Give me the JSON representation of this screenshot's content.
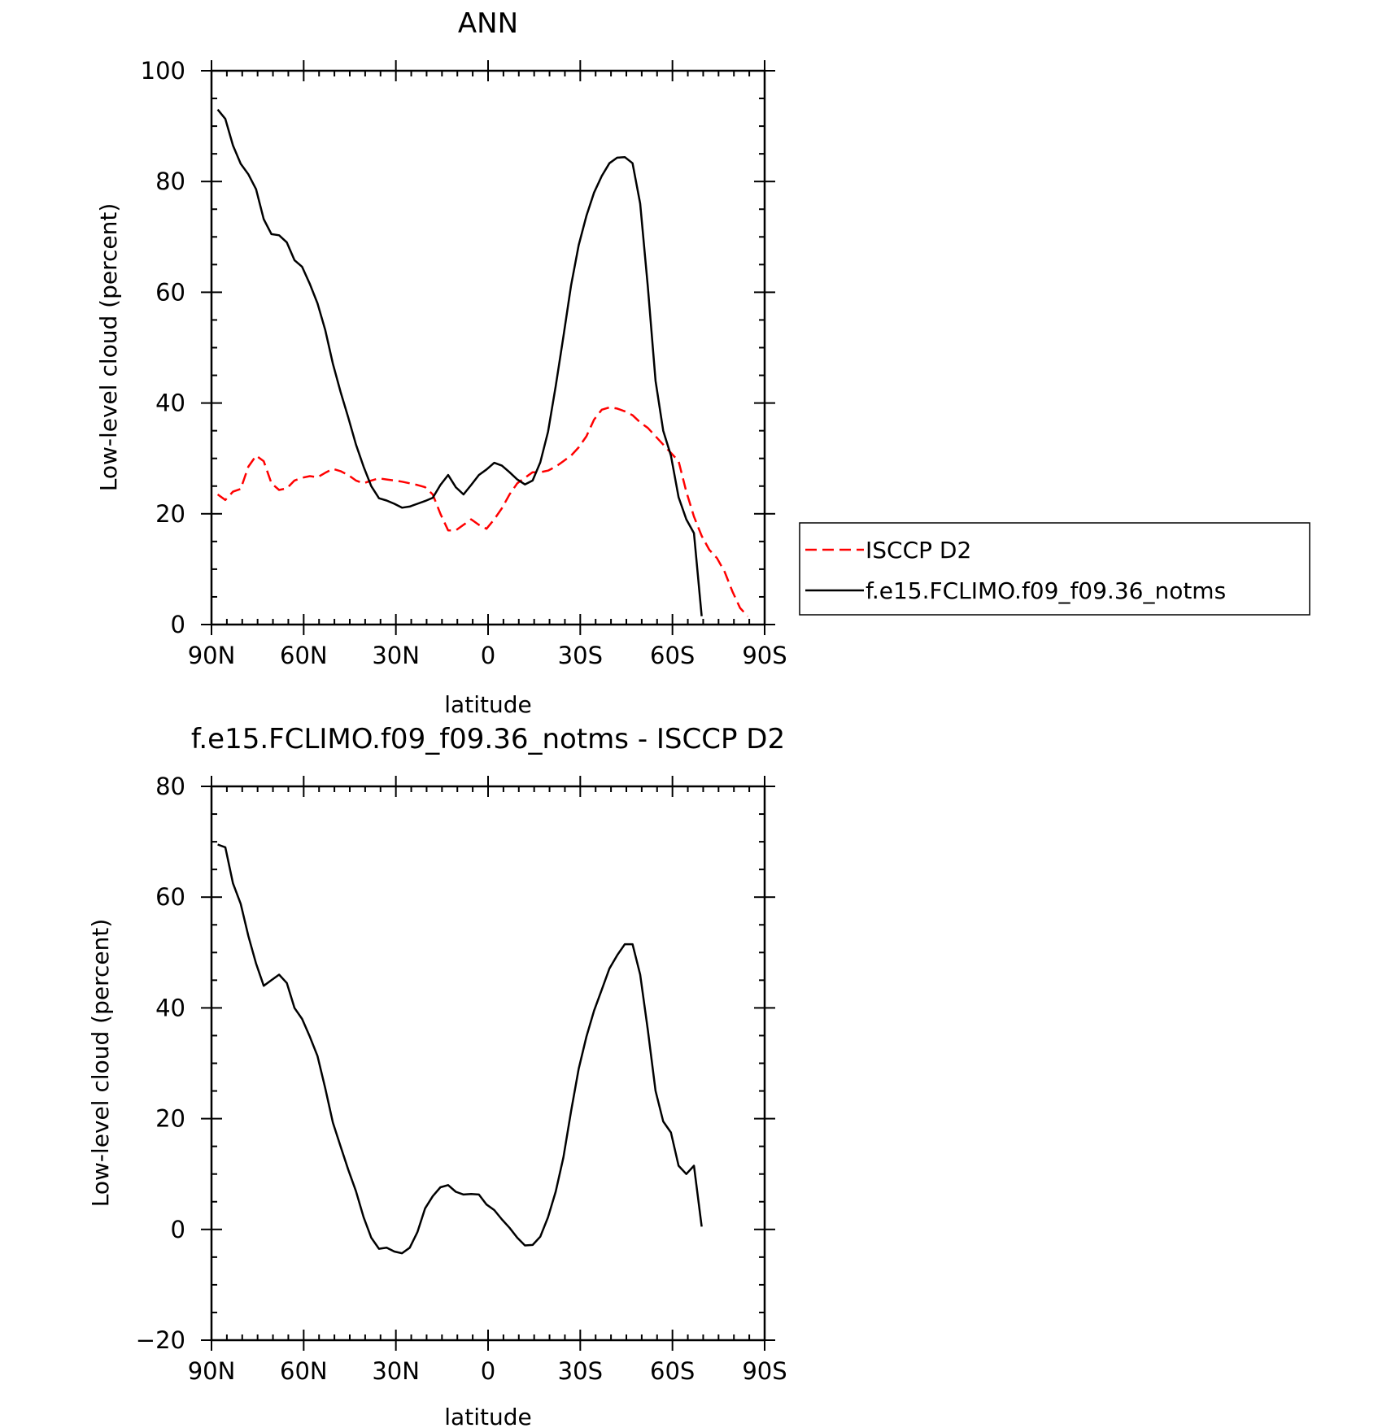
{
  "chart_data": [
    {
      "type": "line",
      "title": "ANN",
      "xlabel": "latitude",
      "ylabel": "Low-level cloud (percent)",
      "xlim": [
        90,
        -90
      ],
      "ylim": [
        0,
        100
      ],
      "x_ticks": [
        {
          "value": 90,
          "label": "90N"
        },
        {
          "value": 60,
          "label": "60N"
        },
        {
          "value": 30,
          "label": "30N"
        },
        {
          "value": 0,
          "label": "0"
        },
        {
          "value": -30,
          "label": "30S"
        },
        {
          "value": -60,
          "label": "60S"
        },
        {
          "value": -90,
          "label": "90S"
        }
      ],
      "y_ticks": [
        0,
        20,
        40,
        60,
        80,
        100
      ],
      "legend": {
        "placement": "right"
      },
      "series": [
        {
          "name": "ISCCP D2",
          "color": "#ff0000",
          "style": "dashed",
          "points": [
            [
              88,
              23.5
            ],
            [
              85.5,
              22.5
            ],
            [
              83,
              24
            ],
            [
              80.5,
              24.5
            ],
            [
              78,
              28.5
            ],
            [
              75.5,
              30.5
            ],
            [
              73,
              29.5
            ],
            [
              70.5,
              25.5
            ],
            [
              68,
              24.3
            ],
            [
              65.5,
              24.6
            ],
            [
              63,
              26
            ],
            [
              60.5,
              26.5
            ],
            [
              58,
              26.8
            ],
            [
              55.5,
              26.6
            ],
            [
              53,
              27.4
            ],
            [
              50.5,
              28.1
            ],
            [
              48,
              27.7
            ],
            [
              45.5,
              27
            ],
            [
              43,
              26
            ],
            [
              40.5,
              25.5
            ],
            [
              38,
              26
            ],
            [
              35.5,
              26.4
            ],
            [
              33,
              26.2
            ],
            [
              30.5,
              26
            ],
            [
              28,
              25.8
            ],
            [
              25.5,
              25.5
            ],
            [
              23,
              25.2
            ],
            [
              20.5,
              24.8
            ],
            [
              18,
              23.5
            ],
            [
              15.5,
              20
            ],
            [
              13,
              17
            ],
            [
              10.5,
              17
            ],
            [
              8,
              18
            ],
            [
              5.5,
              19
            ],
            [
              3,
              18
            ],
            [
              0.5,
              17.3
            ],
            [
              -2,
              19
            ],
            [
              -4.5,
              21
            ],
            [
              -7,
              23.5
            ],
            [
              -9.5,
              25.5
            ],
            [
              -12,
              26.5
            ],
            [
              -14.5,
              27.5
            ],
            [
              -17,
              27.5
            ],
            [
              -19.5,
              27.8
            ],
            [
              -22,
              28.5
            ],
            [
              -24.5,
              29.5
            ],
            [
              -27,
              30.5
            ],
            [
              -29.5,
              32
            ],
            [
              -32,
              34
            ],
            [
              -34.5,
              37
            ],
            [
              -37,
              38.8
            ],
            [
              -39.5,
              39.2
            ],
            [
              -42,
              39
            ],
            [
              -44.5,
              38.5
            ],
            [
              -47,
              37.8
            ],
            [
              -49.5,
              36.5
            ],
            [
              -52,
              35.5
            ],
            [
              -54.5,
              34
            ],
            [
              -57,
              32.5
            ],
            [
              -59.5,
              31
            ],
            [
              -62,
              29.5
            ],
            [
              -64.5,
              24
            ],
            [
              -67,
              19.5
            ],
            [
              -69.5,
              16
            ],
            [
              -72,
              13.5
            ],
            [
              -74.5,
              12
            ],
            [
              -77,
              9.5
            ],
            [
              -79.5,
              6
            ],
            [
              -82,
              3
            ],
            [
              -84.5,
              1.5
            ]
          ]
        },
        {
          "name": "f.e15.FCLIMO.f09_f09.36_notms",
          "color": "#000000",
          "style": "solid",
          "points": [
            [
              88,
              93
            ],
            [
              85.5,
              91.3
            ],
            [
              83,
              86.5
            ],
            [
              80.5,
              83.2
            ],
            [
              78,
              81.3
            ],
            [
              75.5,
              78.6
            ],
            [
              73,
              73.2
            ],
            [
              70.5,
              70.5
            ],
            [
              68,
              70.3
            ],
            [
              65.5,
              69
            ],
            [
              63,
              65.8
            ],
            [
              60.5,
              64.6
            ],
            [
              58,
              61.5
            ],
            [
              55.5,
              58
            ],
            [
              53,
              53.2
            ],
            [
              50.5,
              47.1
            ],
            [
              48,
              42
            ],
            [
              45.5,
              37.4
            ],
            [
              43,
              32.5
            ],
            [
              40.5,
              28.5
            ],
            [
              38,
              25
            ],
            [
              35.5,
              22.8
            ],
            [
              33,
              22.4
            ],
            [
              30.5,
              21.8
            ],
            [
              28,
              21.1
            ],
            [
              25.5,
              21.3
            ],
            [
              23,
              21.8
            ],
            [
              20.5,
              22.3
            ],
            [
              18,
              22.9
            ],
            [
              15.5,
              25.2
            ],
            [
              13,
              27
            ],
            [
              10.5,
              24.8
            ],
            [
              8,
              23.5
            ],
            [
              5.5,
              25.2
            ],
            [
              3,
              27
            ],
            [
              0.5,
              28
            ],
            [
              -2,
              29.2
            ],
            [
              -4.5,
              28.7
            ],
            [
              -7,
              27.5
            ],
            [
              -9.5,
              26.2
            ],
            [
              -12,
              25.3
            ],
            [
              -14.5,
              26
            ],
            [
              -17,
              29.3
            ],
            [
              -19.5,
              34.8
            ],
            [
              -22,
              43
            ],
            [
              -24.5,
              52
            ],
            [
              -27,
              61.2
            ],
            [
              -29.5,
              68.5
            ],
            [
              -32,
              73.8
            ],
            [
              -34.5,
              78
            ],
            [
              -37,
              81
            ],
            [
              -39.5,
              83.3
            ],
            [
              -42,
              84.3
            ],
            [
              -44.5,
              84.4
            ],
            [
              -47,
              83.3
            ],
            [
              -49.5,
              76
            ],
            [
              -52,
              61
            ],
            [
              -54.5,
              44
            ],
            [
              -57,
              35
            ],
            [
              -59.5,
              30.5
            ],
            [
              -62,
              23
            ],
            [
              -64.5,
              19
            ],
            [
              -67,
              16.5
            ],
            [
              -69.5,
              1.5
            ]
          ]
        }
      ]
    },
    {
      "type": "line",
      "title": "f.e15.FCLIMO.f09_f09.36_notms - ISCCP D2",
      "xlabel": "latitude",
      "ylabel": "Low-level cloud (percent)",
      "xlim": [
        90,
        -90
      ],
      "ylim": [
        -20,
        80
      ],
      "x_ticks": [
        {
          "value": 90,
          "label": "90N"
        },
        {
          "value": 60,
          "label": "60N"
        },
        {
          "value": 30,
          "label": "30N"
        },
        {
          "value": 0,
          "label": "0"
        },
        {
          "value": -30,
          "label": "30S"
        },
        {
          "value": -60,
          "label": "60S"
        },
        {
          "value": -90,
          "label": "90S"
        }
      ],
      "y_ticks": [
        -20,
        0,
        20,
        40,
        60,
        80
      ],
      "series": [
        {
          "color": "#000000",
          "style": "solid",
          "points": [
            [
              88,
              69.5
            ],
            [
              85.5,
              69
            ],
            [
              83,
              62.5
            ],
            [
              80.5,
              58.8
            ],
            [
              78,
              53
            ],
            [
              75.5,
              48
            ],
            [
              73,
              44
            ],
            [
              70.5,
              45
            ],
            [
              68,
              46
            ],
            [
              65.5,
              44.5
            ],
            [
              63,
              40
            ],
            [
              60.5,
              38
            ],
            [
              58,
              34.8
            ],
            [
              55.5,
              31.3
            ],
            [
              53,
              25.5
            ],
            [
              50.5,
              19.3
            ],
            [
              48,
              15
            ],
            [
              45.5,
              10.8
            ],
            [
              43,
              6.9
            ],
            [
              40.5,
              2.2
            ],
            [
              38,
              -1.5
            ],
            [
              35.5,
              -3.5
            ],
            [
              33,
              -3.3
            ],
            [
              30.5,
              -4
            ],
            [
              28,
              -4.3
            ],
            [
              25.5,
              -3.3
            ],
            [
              23,
              -0.5
            ],
            [
              20.5,
              3.8
            ],
            [
              18,
              6
            ],
            [
              15.5,
              7.6
            ],
            [
              13,
              8
            ],
            [
              10.5,
              6.8
            ],
            [
              8,
              6.3
            ],
            [
              5.5,
              6.4
            ],
            [
              3,
              6.3
            ],
            [
              0.5,
              4.5
            ],
            [
              -2,
              3.5
            ],
            [
              -4.5,
              1.8
            ],
            [
              -7,
              0.3
            ],
            [
              -9.5,
              -1.5
            ],
            [
              -12,
              -2.9
            ],
            [
              -14.5,
              -2.8
            ],
            [
              -17,
              -1.3
            ],
            [
              -19.5,
              2.2
            ],
            [
              -22,
              6.8
            ],
            [
              -24.5,
              13
            ],
            [
              -27,
              21.3
            ],
            [
              -29.5,
              29
            ],
            [
              -32,
              34.8
            ],
            [
              -34.5,
              39.5
            ],
            [
              -37,
              43.3
            ],
            [
              -39.5,
              47.1
            ],
            [
              -42,
              49.5
            ],
            [
              -44.5,
              51.5
            ],
            [
              -47,
              51.5
            ],
            [
              -49.5,
              46
            ],
            [
              -52,
              36
            ],
            [
              -54.5,
              25
            ],
            [
              -57,
              19.5
            ],
            [
              -59.5,
              17.5
            ],
            [
              -62,
              11.5
            ],
            [
              -64.5,
              10
            ],
            [
              -67,
              11.5
            ],
            [
              -69.5,
              0.5
            ]
          ]
        }
      ]
    }
  ]
}
